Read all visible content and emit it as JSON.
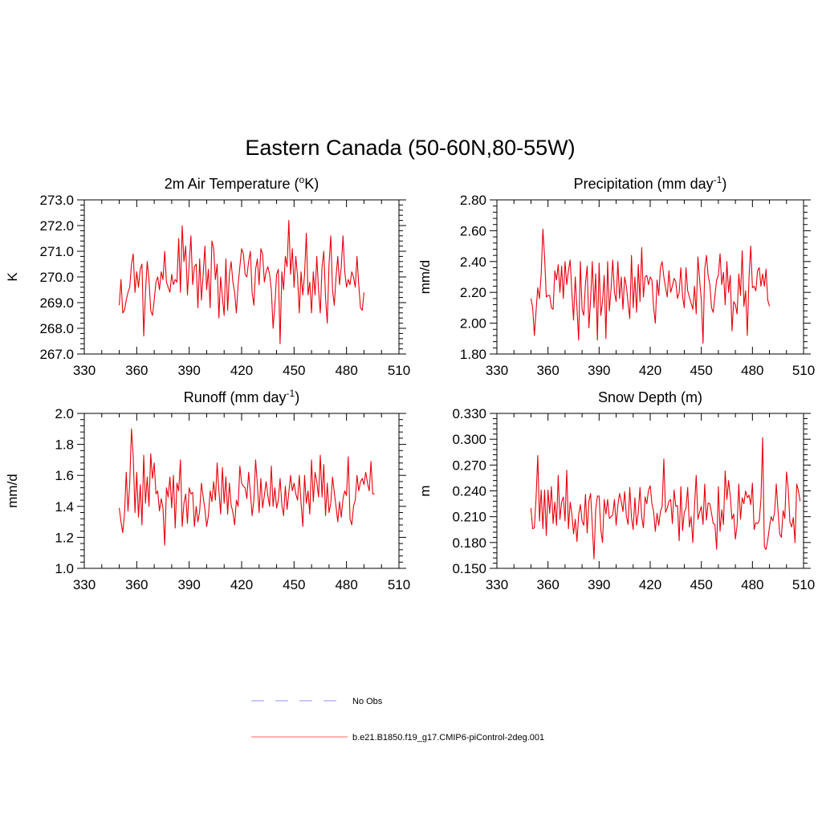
{
  "figure": {
    "title": "Eastern Canada (50-60N,80-55W)"
  },
  "legend": {
    "items": [
      {
        "label": "No Obs",
        "color": "#a6a6ff",
        "style": "dashed"
      },
      {
        "label": "b.e21.B1850.f19_g17.CMIP6-piControl-2deg.001",
        "color": "#ff7f7f",
        "style": "solid"
      }
    ]
  },
  "chart_data": [
    {
      "type": "line",
      "title": "2m Air Temperature (°K)",
      "title_base": "2m Air Temperature (",
      "title_sup": "o",
      "title_tail": "K)",
      "xlabel": "",
      "ylabel": "K",
      "xlim": [
        330,
        510
      ],
      "ylim": [
        267.0,
        273.0
      ],
      "xticks": [
        "330",
        "360",
        "390",
        "420",
        "450",
        "480",
        "510"
      ],
      "yticks": [
        "267.0",
        "268.0",
        "269.0",
        "270.0",
        "271.0",
        "272.0",
        "273.0"
      ],
      "series": [
        {
          "name": "b.e21.B1850.f19_g17.CMIP6-piControl-2deg.001",
          "color": "#e8000b",
          "x_start": 350,
          "values": [
            268.9,
            269.9,
            268.6,
            268.7,
            269.1,
            269.4,
            269.6,
            270.5,
            270.9,
            269.4,
            270.2,
            269.6,
            270.3,
            270.5,
            267.7,
            269.4,
            270.6,
            269.9,
            268.7,
            268.5,
            269.1,
            269.8,
            270.0,
            269.5,
            270.2,
            269.9,
            271.0,
            269.8,
            269.6,
            269.4,
            270.1,
            269.7,
            269.9,
            269.8,
            271.5,
            269.4,
            272.0,
            270.6,
            271.2,
            269.3,
            270.5,
            271.6,
            269.7,
            270.4,
            270.5,
            268.8,
            270.7,
            269.1,
            270.1,
            271.2,
            269.5,
            270.3,
            268.8,
            271.4,
            271.1,
            269.9,
            270.5,
            268.4,
            270.0,
            269.2,
            268.5,
            270.7,
            268.7,
            270.1,
            270.6,
            269.8,
            269.4,
            268.6,
            269.7,
            270.4,
            271.1,
            270.9,
            270.1,
            270.0,
            270.6,
            271.0,
            269.4,
            268.9,
            270.3,
            270.7,
            269.7,
            271.1,
            270.9,
            269.8,
            270.2,
            270.4,
            270.1,
            269.5,
            268.0,
            268.9,
            270.1,
            270.3,
            267.4,
            270.2,
            269.5,
            270.8,
            270.4,
            272.2,
            270.1,
            271.1,
            269.6,
            270.8,
            270.0,
            268.6,
            270.2,
            269.3,
            270.1,
            271.7,
            269.3,
            269.8,
            268.6,
            270.2,
            269.3,
            270.8,
            269.5,
            268.6,
            270.4,
            271.0,
            269.2,
            268.2,
            270.5,
            271.6,
            269.5,
            268.9,
            270.0,
            270.8,
            269.7,
            270.4,
            271.6,
            270.2,
            269.6,
            269.9,
            269.7,
            270.2,
            270.0,
            269.6,
            270.8,
            269.7,
            268.8,
            268.7,
            269.4
          ]
        }
      ]
    },
    {
      "type": "line",
      "title": "Precipitation (mm day-1)",
      "title_base": "Precipitation (mm day",
      "title_sup": "-1",
      "title_tail": ")",
      "xlabel": "",
      "ylabel": "mm/d",
      "xlim": [
        330,
        510
      ],
      "ylim": [
        1.8,
        2.8
      ],
      "xticks": [
        "330",
        "360",
        "390",
        "420",
        "450",
        "480",
        "510"
      ],
      "yticks": [
        "1.80",
        "2.00",
        "2.20",
        "2.40",
        "2.60",
        "2.80"
      ],
      "series": [
        {
          "name": "b.e21.B1850.f19_g17.CMIP6-piControl-2deg.001",
          "color": "#e8000b",
          "x_start": 350,
          "values": [
            2.16,
            2.1,
            1.92,
            2.08,
            2.23,
            2.16,
            2.32,
            2.61,
            2.43,
            2.17,
            2.18,
            2.18,
            2.1,
            2.09,
            2.34,
            2.28,
            2.38,
            2.2,
            2.37,
            2.16,
            2.4,
            2.25,
            2.34,
            2.41,
            2.2,
            2.02,
            2.3,
            2.1,
            1.89,
            2.4,
            2.09,
            2.05,
            2.26,
            2.37,
            1.97,
            2.15,
            2.4,
            2.1,
            2.32,
            1.89,
            2.39,
            2.05,
            2.14,
            2.31,
            1.9,
            2.4,
            2.08,
            2.22,
            2.41,
            2.2,
            2.14,
            2.4,
            2.16,
            2.3,
            2.09,
            2.3,
            2.24,
            2.13,
            2.03,
            2.44,
            2.1,
            2.3,
            2.07,
            2.38,
            2.14,
            2.49,
            2.17,
            2.3,
            2.31,
            2.25,
            2.3,
            2.28,
            2.1,
            2.0,
            2.28,
            2.18,
            2.36,
            2.4,
            2.3,
            2.23,
            2.17,
            2.34,
            2.2,
            2.24,
            2.29,
            2.27,
            2.16,
            2.2,
            2.36,
            2.17,
            2.1,
            2.36,
            2.21,
            2.17,
            2.13,
            2.09,
            2.24,
            2.06,
            2.43,
            2.28,
            2.15,
            1.87,
            2.35,
            2.44,
            2.31,
            2.25,
            2.1,
            2.07,
            2.18,
            2.28,
            2.31,
            2.45,
            2.25,
            2.33,
            2.12,
            2.4,
            2.2,
            2.31,
            1.95,
            2.14,
            2.12,
            2.06,
            2.32,
            2.18,
            2.47,
            2.11,
            2.21,
            1.92,
            2.3,
            2.5,
            2.23,
            2.24,
            2.21,
            2.34,
            2.36,
            2.24,
            2.32,
            2.24,
            2.35,
            2.15,
            2.11
          ]
        }
      ]
    },
    {
      "type": "line",
      "title": "Runoff (mm day-1)",
      "title_base": "Runoff (mm day",
      "title_sup": "-1",
      "title_tail": ")",
      "xlabel": "",
      "ylabel": "mm/d",
      "xlim": [
        330,
        510
      ],
      "ylim": [
        1.0,
        2.0
      ],
      "xticks": [
        "330",
        "360",
        "390",
        "420",
        "450",
        "480",
        "510"
      ],
      "yticks": [
        "1.0",
        "1.2",
        "1.4",
        "1.6",
        "1.8",
        "2.0"
      ],
      "series": [
        {
          "name": "b.e21.B1850.f19_g17.CMIP6-piControl-2deg.001",
          "color": "#e8000b",
          "x_start": 350,
          "values": [
            1.39,
            1.3,
            1.23,
            1.35,
            1.62,
            1.37,
            1.55,
            1.9,
            1.72,
            1.36,
            1.62,
            1.33,
            1.54,
            1.28,
            1.73,
            1.42,
            1.59,
            1.4,
            1.74,
            1.58,
            1.68,
            1.48,
            1.5,
            1.37,
            1.45,
            1.39,
            1.15,
            1.52,
            1.46,
            1.59,
            1.39,
            1.6,
            1.26,
            1.55,
            1.5,
            1.7,
            1.27,
            1.42,
            1.48,
            1.29,
            1.52,
            1.48,
            1.49,
            1.27,
            1.4,
            1.3,
            1.37,
            1.55,
            1.46,
            1.38,
            1.27,
            1.34,
            1.5,
            1.43,
            1.56,
            1.44,
            1.68,
            1.5,
            1.35,
            1.65,
            1.42,
            1.59,
            1.35,
            1.55,
            1.41,
            1.36,
            1.28,
            1.44,
            1.4,
            1.66,
            1.55,
            1.53,
            1.52,
            1.45,
            1.62,
            1.49,
            1.34,
            1.44,
            1.7,
            1.54,
            1.36,
            1.58,
            1.39,
            1.47,
            1.56,
            1.47,
            1.4,
            1.66,
            1.4,
            1.52,
            1.39,
            1.44,
            1.58,
            1.41,
            1.34,
            1.53,
            1.38,
            1.49,
            1.6,
            1.5,
            1.55,
            1.48,
            1.44,
            1.6,
            1.42,
            1.27,
            1.6,
            1.42,
            1.5,
            1.35,
            1.7,
            1.43,
            1.62,
            1.56,
            1.46,
            1.73,
            1.46,
            1.67,
            1.34,
            1.55,
            1.36,
            1.42,
            1.59,
            1.49,
            1.4,
            1.3,
            1.43,
            1.33,
            1.45,
            1.5,
            1.47,
            1.72,
            1.32,
            1.28,
            1.4,
            1.44,
            1.6,
            1.5,
            1.56,
            1.58,
            1.54,
            1.62,
            1.55,
            1.5,
            1.69,
            1.48,
            1.48
          ]
        }
      ]
    },
    {
      "type": "line",
      "title": "Snow Depth (m)",
      "title_base": "Snow Depth (m)",
      "title_sup": "",
      "title_tail": "",
      "xlabel": "",
      "ylabel": "m",
      "xlim": [
        330,
        510
      ],
      "ylim": [
        0.15,
        0.33
      ],
      "xticks": [
        "330",
        "360",
        "390",
        "420",
        "450",
        "480",
        "510"
      ],
      "yticks": [
        "0.150",
        "0.180",
        "0.210",
        "0.240",
        "0.270",
        "0.300",
        "0.330"
      ],
      "series": [
        {
          "name": "b.e21.B1850.f19_g17.CMIP6-piControl-2deg.001",
          "color": "#e8000b",
          "x_start": 350,
          "values": [
            0.22,
            0.196,
            0.197,
            0.232,
            0.281,
            0.205,
            0.241,
            0.196,
            0.241,
            0.188,
            0.241,
            0.214,
            0.245,
            0.202,
            0.227,
            0.2,
            0.258,
            0.207,
            0.227,
            0.233,
            0.205,
            0.264,
            0.196,
            0.227,
            0.213,
            0.19,
            0.207,
            0.181,
            0.212,
            0.224,
            0.205,
            0.2,
            0.236,
            0.191,
            0.228,
            0.237,
            0.2,
            0.161,
            0.218,
            0.234,
            0.234,
            0.195,
            0.18,
            0.23,
            0.213,
            0.23,
            0.208,
            0.21,
            0.212,
            0.23,
            0.2,
            0.223,
            0.237,
            0.228,
            0.216,
            0.239,
            0.211,
            0.201,
            0.244,
            0.209,
            0.195,
            0.232,
            0.2,
            0.215,
            0.244,
            0.21,
            0.197,
            0.233,
            0.225,
            0.241,
            0.246,
            0.225,
            0.216,
            0.193,
            0.214,
            0.2,
            0.216,
            0.222,
            0.277,
            0.215,
            0.22,
            0.228,
            0.23,
            0.202,
            0.241,
            0.222,
            0.223,
            0.182,
            0.245,
            0.194,
            0.215,
            0.22,
            0.244,
            0.198,
            0.21,
            0.18,
            0.222,
            0.258,
            0.207,
            0.215,
            0.222,
            0.201,
            0.248,
            0.206,
            0.226,
            0.225,
            0.214,
            0.202,
            0.201,
            0.172,
            0.245,
            0.193,
            0.218,
            0.201,
            0.263,
            0.23,
            0.252,
            0.234,
            0.207,
            0.213,
            0.184,
            0.2,
            0.248,
            0.207,
            0.232,
            0.225,
            0.24,
            0.232,
            0.235,
            0.224,
            0.249,
            0.195,
            0.203,
            0.202,
            0.205,
            0.23,
            0.302,
            0.175,
            0.172,
            0.183,
            0.198,
            0.21,
            0.205,
            0.215,
            0.248,
            0.218,
            0.19,
            0.186,
            0.217,
            0.208,
            0.262,
            0.243,
            0.204,
            0.198,
            0.209,
            0.18,
            0.248,
            0.24,
            0.228
          ]
        }
      ]
    }
  ]
}
